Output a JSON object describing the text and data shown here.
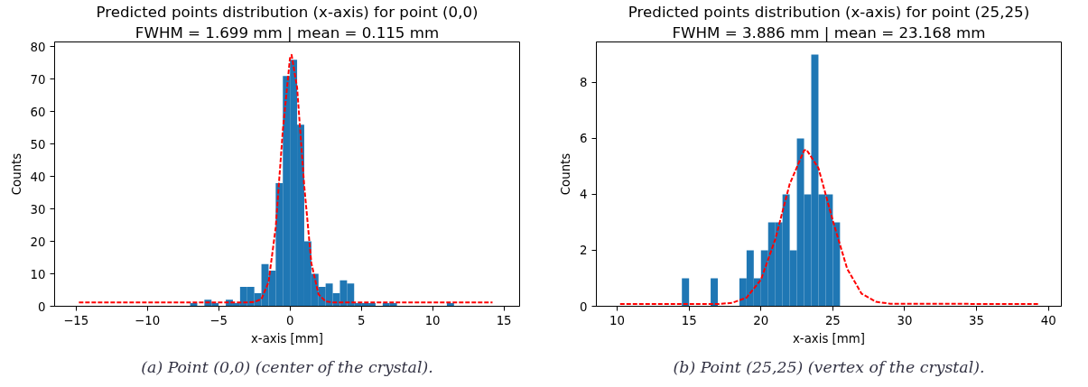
{
  "chart_data": [
    {
      "type": "histogram",
      "title": "Predicted points distribution (x-axis) for point (0,0)",
      "subtitle": "FWHM = 1.699 mm | mean = 0.115 mm",
      "xlabel": "x-axis [mm]",
      "ylabel": "Counts",
      "color": "#1f77b4",
      "grid": false,
      "marker": "none",
      "bins": [
        -7,
        -6.5,
        -6,
        -5.5,
        -5,
        -4.5,
        -4,
        -3.5,
        -3,
        -2.5,
        -2,
        -1.5,
        -1,
        -0.5,
        0,
        0.5,
        1,
        1.5,
        2,
        2.5,
        3,
        3.5,
        4,
        4.5,
        5,
        5.5,
        6,
        6.5,
        7,
        7.5,
        8,
        8.5,
        9,
        9.5,
        10,
        10.5,
        11,
        11.5
      ],
      "values": [
        1,
        0,
        2,
        1,
        0,
        2,
        1,
        6,
        6,
        4,
        13,
        11,
        38,
        71,
        76,
        56,
        20,
        10,
        6,
        7,
        4,
        8,
        7,
        1,
        1,
        1,
        0,
        1,
        1,
        0,
        0,
        0,
        0,
        0,
        0,
        0,
        1
      ],
      "series": [
        {
          "type": "line",
          "color": "#ff0000",
          "line_style": "dashed",
          "x": [
            -14.8,
            -5,
            -3,
            -2.5,
            -2,
            -1.5,
            -1,
            -0.5,
            0,
            0.115,
            0.5,
            1,
            1.5,
            2,
            2.5,
            3,
            5,
            14.2
          ],
          "values": [
            1.2,
            1.2,
            1.2,
            1.3,
            2.2,
            7.5,
            24.3,
            54.3,
            76.5,
            77.5,
            67.4,
            37.1,
            13.3,
            3.7,
            1.5,
            1.2,
            1.2,
            1.2
          ]
        }
      ],
      "xlim": [
        -16.5,
        16.1
      ],
      "ylim": [
        0,
        81.5
      ],
      "xticks": [
        -15,
        -10,
        -5,
        0,
        5,
        10,
        15
      ],
      "yticks": [
        0,
        10,
        20,
        30,
        40,
        50,
        60,
        70,
        80
      ],
      "annotations": [
        "(a) Point (0,0) (center of the crystal)."
      ]
    },
    {
      "type": "histogram",
      "title": "Predicted points distribution (x-axis) for point (25,25)",
      "subtitle": "FWHM = 3.886 mm | mean = 23.168 mm",
      "xlabel": "x-axis [mm]",
      "ylabel": "Counts",
      "color": "#1f77b4",
      "grid": false,
      "marker": "none",
      "bins": [
        14.5,
        15,
        15.5,
        16,
        16.5,
        17,
        17.5,
        18,
        18.5,
        19,
        19.5,
        20,
        20.5,
        21,
        21.5,
        22,
        22.5,
        23,
        23.5,
        24,
        24.5,
        25,
        25.5
      ],
      "values": [
        1,
        0,
        0,
        0,
        1,
        0,
        0,
        0,
        1,
        2,
        1,
        2,
        3,
        3,
        4,
        2,
        6,
        4,
        9,
        4,
        4,
        3
      ],
      "series": [
        {
          "type": "line",
          "color": "#ff0000",
          "line_style": "dashed",
          "x": [
            10.2,
            17,
            18,
            19,
            20,
            21,
            22,
            23,
            23.168,
            24,
            25,
            26,
            27,
            28,
            29,
            39.3
          ],
          "values": [
            0.08,
            0.08,
            0.12,
            0.31,
            0.95,
            2.4,
            4.37,
            5.57,
            5.6,
            4.94,
            3.06,
            1.34,
            0.45,
            0.16,
            0.09,
            0.08
          ]
        }
      ],
      "xlim": [
        8.55,
        40.9
      ],
      "ylim": [
        0,
        9.45
      ],
      "xticks": [
        10,
        15,
        20,
        25,
        30,
        35,
        40
      ],
      "yticks": [
        0,
        2,
        4,
        6,
        8
      ],
      "annotations": [
        "(b) Point (25,25) (vertex of the crystal)."
      ]
    }
  ]
}
